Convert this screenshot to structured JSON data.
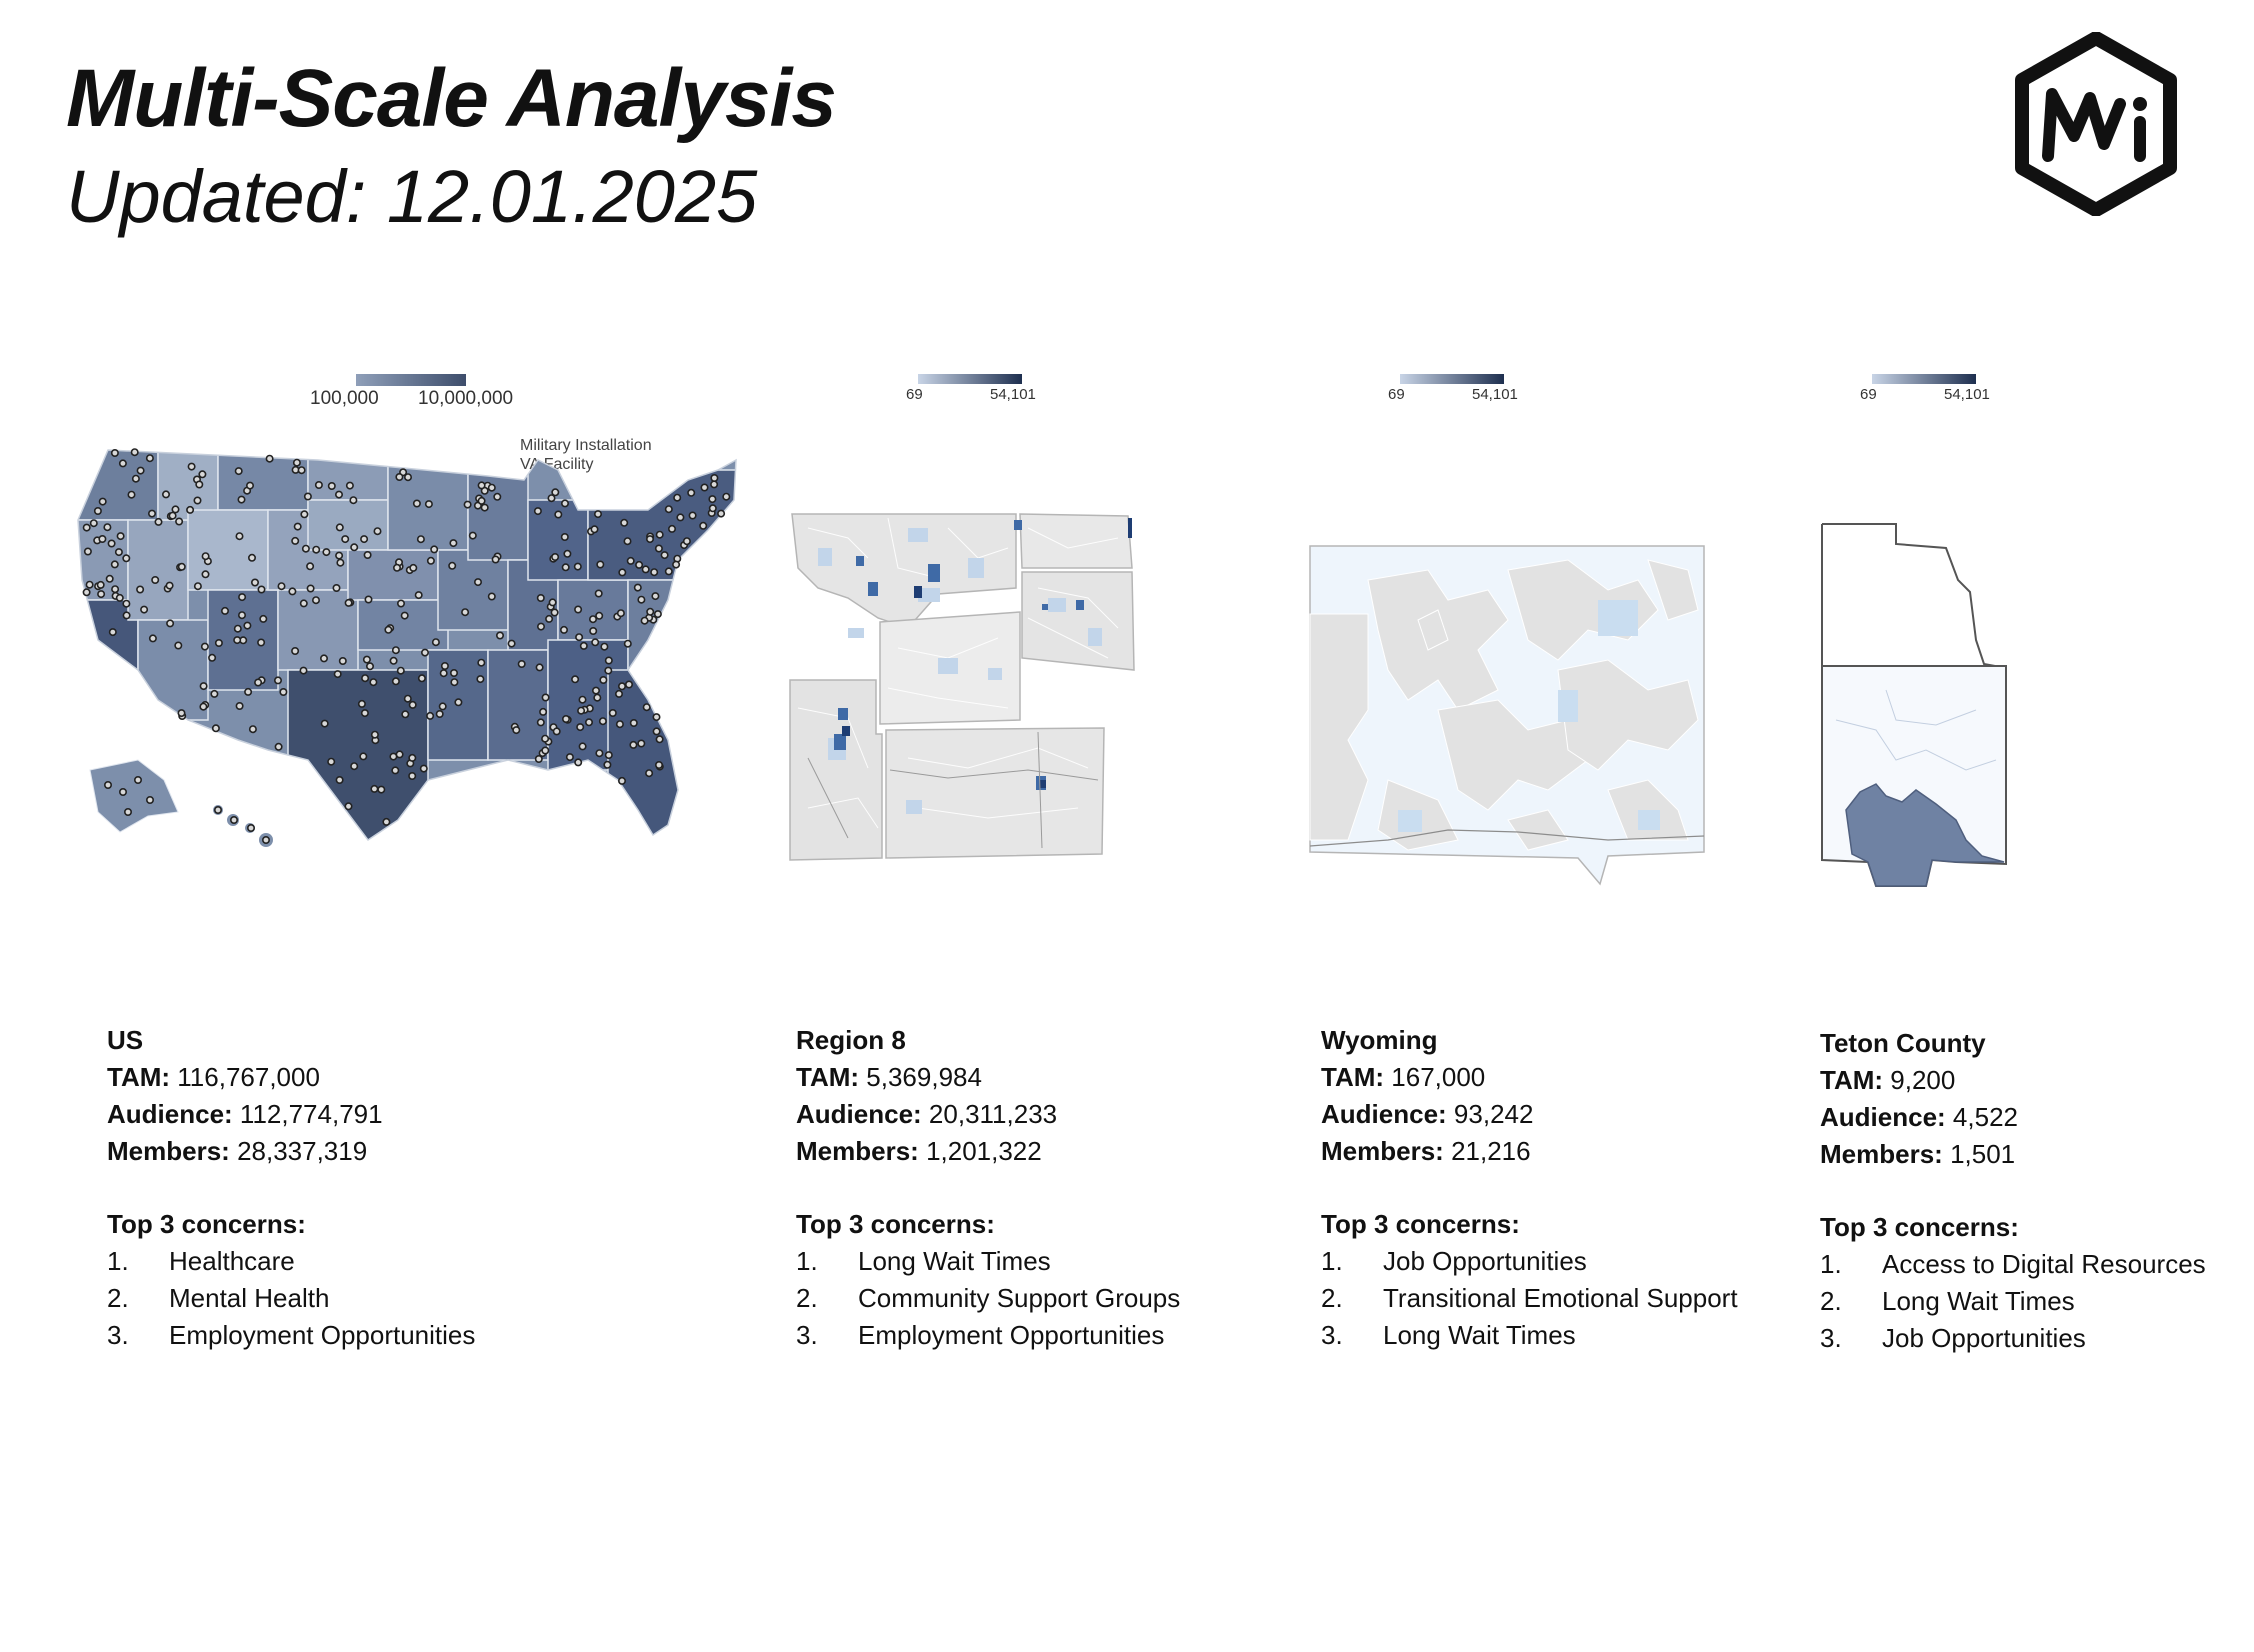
{
  "header": {
    "title": "Multi-Scale Analysis",
    "subtitle": "Updated: 12.01.2025",
    "logo_text": "MWi"
  },
  "colors": {
    "us_base": "#7d8fab",
    "us_dark": "#3f4f6d",
    "us_light": "#a9b7cc",
    "fill_light_gray": "#e6e6e6",
    "fill_pale_blue": "#eef5fc",
    "accent_blue": "#2b5797",
    "teton_fill": "#6f82a3"
  },
  "panels": [
    {
      "id": "us",
      "legend": {
        "min": "100,000",
        "max": "10,000,000"
      },
      "map_labels": [
        "Military Installation",
        "VA Facility"
      ],
      "name": "US",
      "tam_label": "TAM:",
      "tam": "116,767,000",
      "audience_label": "Audience:",
      "audience": "112,774,791",
      "members_label": "Members:",
      "members": "28,337,319",
      "concerns_title": "Top 3 concerns:",
      "concerns": [
        {
          "num": "1.",
          "text": "Healthcare"
        },
        {
          "num": "2.",
          "text": "Mental Health"
        },
        {
          "num": "3.",
          "text": "Employment Opportunities"
        }
      ]
    },
    {
      "id": "region8",
      "legend": {
        "min": "69",
        "max": "54,101"
      },
      "name": "Region 8",
      "tam_label": "TAM:",
      "tam": "5,369,984",
      "audience_label": "Audience:",
      "audience": "20,311,233",
      "members_label": "Members:",
      "members": "1,201,322",
      "concerns_title": "Top 3 concerns:",
      "concerns": [
        {
          "num": "1.",
          "text": "Long Wait Times"
        },
        {
          "num": "2.",
          "text": "Community Support Groups"
        },
        {
          "num": "3.",
          "text": "Employment Opportunities"
        }
      ]
    },
    {
      "id": "wyoming",
      "legend": {
        "min": "69",
        "max": "54,101"
      },
      "name": "Wyoming",
      "tam_label": "TAM:",
      "tam": "167,000",
      "audience_label": "Audience:",
      "audience": "93,242",
      "members_label": "Members:",
      "members": "21,216",
      "concerns_title": "Top 3 concerns:",
      "concerns": [
        {
          "num": "1.",
          "text": "Job Opportunities"
        },
        {
          "num": "2.",
          "text": "Transitional Emotional Support"
        },
        {
          "num": "3.",
          "text": "Long Wait Times"
        }
      ]
    },
    {
      "id": "teton",
      "legend": {
        "min": "69",
        "max": "54,101"
      },
      "name": "Teton County",
      "tam_label": "TAM:",
      "tam": "9,200",
      "audience_label": "Audience:",
      "audience": "4,522",
      "members_label": "Members:",
      "members": "1,501",
      "concerns_title": "Top 3 concerns:",
      "concerns": [
        {
          "num": "1.",
          "text": "Access to Digital Resources"
        },
        {
          "num": "2.",
          "text": "Long Wait Times"
        },
        {
          "num": "3.",
          "text": "Job Opportunities"
        }
      ]
    }
  ]
}
